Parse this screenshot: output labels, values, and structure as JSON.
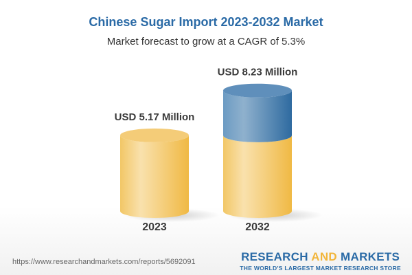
{
  "title": "Chinese Sugar Import 2023-2032 Market",
  "subtitle": "Market forecast to grow at a CAGR of 5.3%",
  "chart_data": {
    "type": "bar",
    "style": "3d-cylinder",
    "categories": [
      "2023",
      "2032"
    ],
    "values": [
      5.17,
      8.23
    ],
    "data_labels": [
      "USD 5.17 Million",
      "USD 8.23 Million"
    ],
    "unit": "USD Million",
    "cagr": "5.3%",
    "colors": {
      "base": "#f3c35a",
      "growth": "#3f7bb0"
    }
  },
  "footer": {
    "url": "https://www.researchandmarkets.com/reports/5692091",
    "logo_line1_a": "RESEARCH ",
    "logo_line1_b": "AND",
    "logo_line1_c": " MARKETS",
    "logo_line2": "THE WORLD'S LARGEST MARKET RESEARCH STORE"
  }
}
